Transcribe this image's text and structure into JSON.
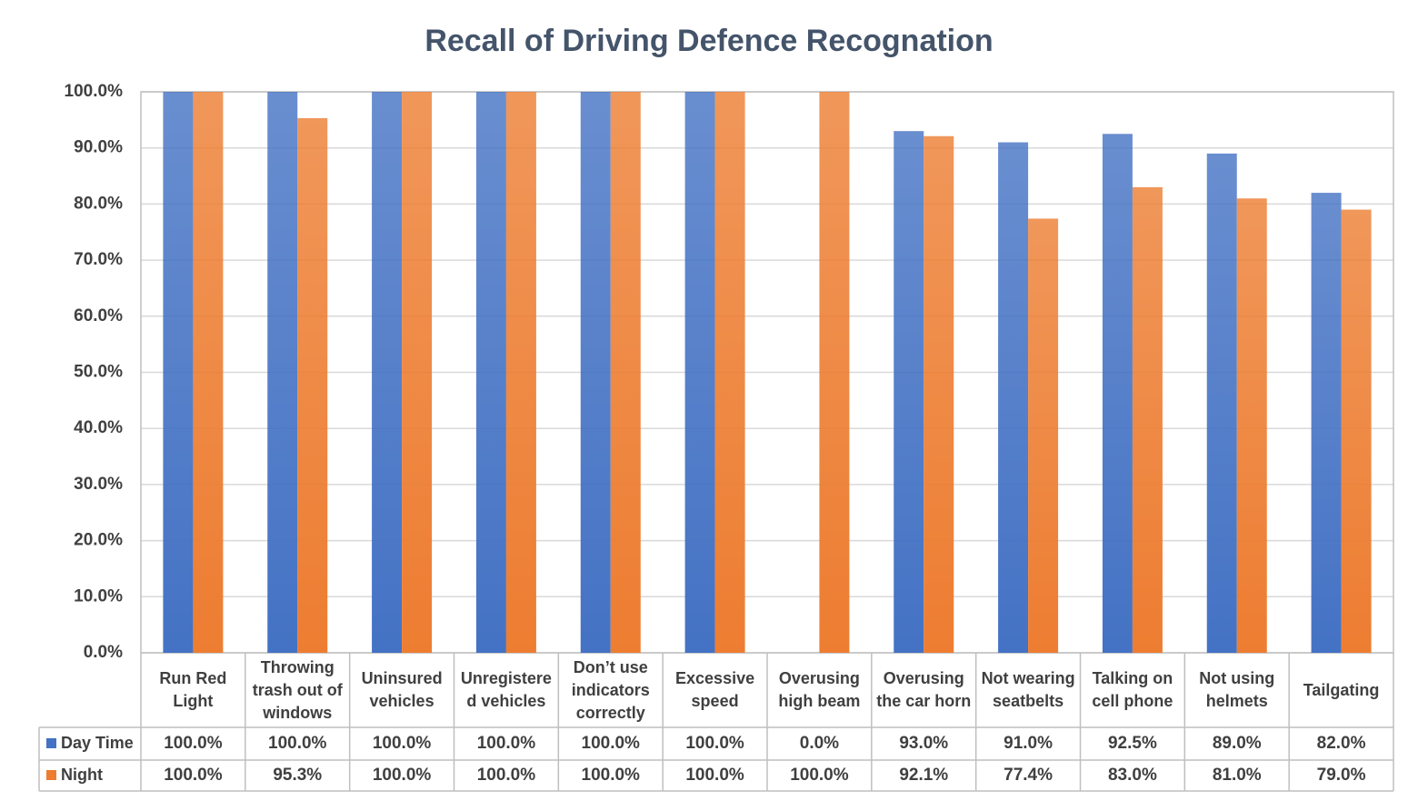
{
  "chart_data": {
    "type": "bar",
    "title": "Recall of Driving Defence Recognation",
    "categories": [
      "Run Red Light",
      "Throwing trash out of windows",
      "Uninsured vehicles",
      "Unregistered vehicles",
      "Don’t use indicators correctly",
      "Excessive speed",
      "Overusing high beam",
      "Overusing the car horn",
      "Not wearing seatbelts",
      "Talking on cell phone",
      "Not using helmets",
      "Tailgating"
    ],
    "series": [
      {
        "name": "Day Time",
        "color": "#4472c4",
        "values": [
          100,
          100,
          100,
          100,
          100,
          100,
          0,
          93,
          91,
          92.5,
          89,
          82
        ],
        "value_labels": [
          "100.0%",
          "100.0%",
          "100.0%",
          "100.0%",
          "100.0%",
          "100.0%",
          "0.0%",
          "93.0%",
          "91.0%",
          "92.5%",
          "89.0%",
          "82.0%"
        ]
      },
      {
        "name": "Night",
        "color": "#ed7d31",
        "values": [
          100,
          95.3,
          100,
          100,
          100,
          100,
          100,
          92.1,
          77.4,
          83,
          81,
          79
        ],
        "value_labels": [
          "100.0%",
          "95.3%",
          "100.0%",
          "100.0%",
          "100.0%",
          "100.0%",
          "100.0%",
          "92.1%",
          "77.4%",
          "83.0%",
          "81.0%",
          "79.0%"
        ]
      }
    ],
    "ylim": [
      0,
      100
    ],
    "yticks": [
      {
        "value": 0,
        "label": "0.0%"
      },
      {
        "value": 10,
        "label": "10.0%"
      },
      {
        "value": 20,
        "label": "20.0%"
      },
      {
        "value": 30,
        "label": "30.0%"
      },
      {
        "value": 40,
        "label": "40.0%"
      },
      {
        "value": 50,
        "label": "50.0%"
      },
      {
        "value": 60,
        "label": "60.0%"
      },
      {
        "value": 70,
        "label": "70.0%"
      },
      {
        "value": 80,
        "label": "80.0%"
      },
      {
        "value": 90,
        "label": "90.0%"
      },
      {
        "value": 100,
        "label": "100.0%"
      }
    ],
    "grid": true
  }
}
